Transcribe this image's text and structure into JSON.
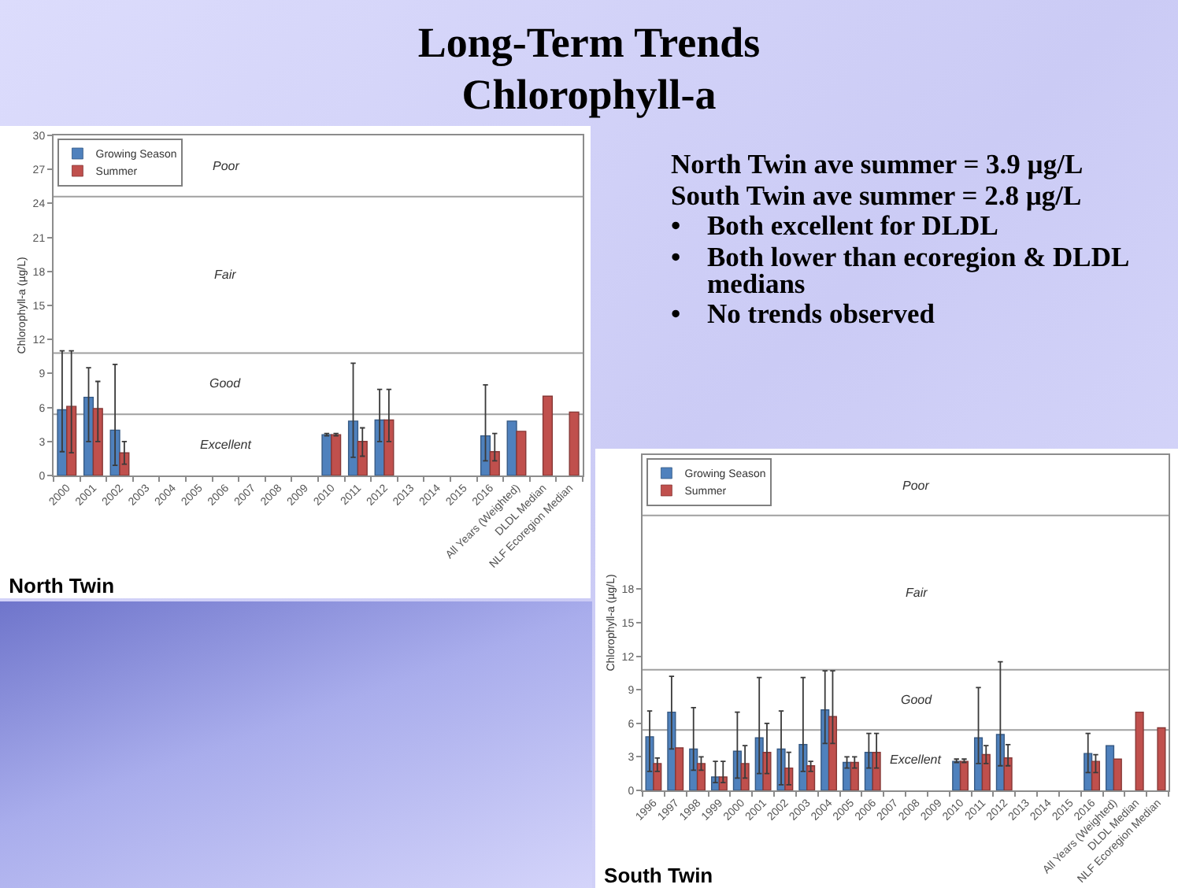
{
  "chart_data": [
    {
      "type": "other",
      "title": "Long-Term Trends\nChlorophyll-a",
      "annotations": [
        "North Twin ave summer = 3.9 µg/L",
        "South Twin ave summer = 2.8 µg/L",
        "•\tBoth excellent for DLDL",
        "•\tBoth lower than ecoregion & DLDL medians",
        "•\tNo trends observed"
      ]
    },
    {
      "type": "bar",
      "title": "North Twin",
      "ylabel": "Chlorophyll-a (µg/L)",
      "categories": [
        "2000",
        "2001",
        "2002",
        "2003",
        "2004",
        "2005",
        "2006",
        "2007",
        "2008",
        "2009",
        "2010",
        "2011",
        "2012",
        "2013",
        "2014",
        "2015",
        "2016",
        "All Years (Weighted)",
        "DLDL Median",
        "NLF Ecoregion Median"
      ],
      "series": [
        {
          "name": "Growing Season",
          "color": "#4f81bd",
          "values": [
            5.8,
            6.9,
            4.0,
            null,
            null,
            null,
            null,
            null,
            null,
            null,
            3.6,
            4.8,
            4.9,
            null,
            null,
            null,
            3.5,
            4.8,
            null,
            null
          ],
          "errors": [
            [
              2.1,
              11
            ],
            [
              3.0,
              9.5
            ],
            [
              0.9,
              9.8
            ],
            null,
            null,
            null,
            null,
            null,
            null,
            null,
            [
              3.5,
              3.7
            ],
            [
              1.6,
              9.9
            ],
            [
              3.0,
              7.6
            ],
            null,
            null,
            null,
            [
              1.3,
              8.0
            ],
            null,
            null,
            null
          ]
        },
        {
          "name": "Summer",
          "color": "#c0504d",
          "values": [
            6.1,
            5.9,
            2.0,
            null,
            null,
            null,
            null,
            null,
            null,
            null,
            3.6,
            3.0,
            4.9,
            null,
            null,
            null,
            2.1,
            3.9,
            7.0,
            5.6
          ],
          "errors": [
            [
              2.0,
              11
            ],
            [
              3.0,
              8.3
            ],
            [
              1.0,
              3.0
            ],
            null,
            null,
            null,
            null,
            null,
            null,
            null,
            [
              3.5,
              3.7
            ],
            [
              1.7,
              4.2
            ],
            [
              3.0,
              7.6
            ],
            null,
            null,
            null,
            [
              1.3,
              3.7
            ],
            null,
            null,
            null
          ]
        }
      ],
      "ylim": [
        0,
        30
      ],
      "yticks": [
        0,
        3,
        6,
        9,
        12,
        15,
        18,
        21,
        24,
        27,
        30
      ],
      "ref_lines": [
        {
          "axis": "y",
          "value": 5.4,
          "color": "#a0a0a0"
        },
        {
          "axis": "y",
          "value": 10.8,
          "color": "#a0a0a0"
        },
        {
          "axis": "y",
          "value": 24.6,
          "color": "#a0a0a0"
        }
      ],
      "annotations": [
        "Poor",
        "Fair",
        "Good",
        "Excellent"
      ],
      "legend": "top left",
      "grid": false
    },
    {
      "type": "bar",
      "title": "South Twin",
      "ylabel": "Chlorophyll-a (µg/L)",
      "categories": [
        "1996",
        "1997",
        "1998",
        "1999",
        "2000",
        "2001",
        "2002",
        "2003",
        "2004",
        "2005",
        "2006",
        "2007",
        "2008",
        "2009",
        "2010",
        "2011",
        "2012",
        "2013",
        "2014",
        "2015",
        "2016",
        "All Years (Weighted)",
        "DLDL Median",
        "NLF Ecoregion Median"
      ],
      "series": [
        {
          "name": "Growing Season",
          "color": "#4f81bd",
          "values": [
            4.8,
            7.0,
            3.7,
            1.2,
            3.5,
            4.7,
            3.7,
            4.1,
            7.2,
            2.5,
            3.4,
            null,
            null,
            null,
            2.6,
            4.7,
            5.0,
            null,
            null,
            null,
            3.3,
            4.0,
            null,
            null
          ],
          "errors": [
            [
              1.7,
              7.1
            ],
            [
              3.7,
              10.2
            ],
            [
              1.8,
              7.4
            ],
            [
              0.7,
              2.6
            ],
            [
              1.1,
              7.0
            ],
            [
              1.5,
              10.1
            ],
            [
              0.5,
              7.1
            ],
            [
              1.7,
              10.1
            ],
            [
              4.2,
              10.7
            ],
            [
              2.0,
              3.0
            ],
            [
              2.0,
              5.1
            ],
            null,
            null,
            null,
            [
              2.5,
              2.8
            ],
            [
              2.4,
              9.2
            ],
            [
              2.2,
              11.5
            ],
            null,
            null,
            null,
            [
              1.6,
              5.1
            ],
            null,
            null,
            null
          ]
        },
        {
          "name": "Summer",
          "color": "#c0504d",
          "values": [
            2.4,
            3.8,
            2.4,
            1.2,
            2.4,
            3.4,
            2.0,
            2.2,
            6.6,
            2.5,
            3.4,
            null,
            null,
            null,
            2.6,
            3.2,
            2.9,
            null,
            null,
            null,
            2.6,
            2.8,
            7.0,
            5.6
          ],
          "errors": [
            [
              1.7,
              2.9
            ],
            null,
            [
              1.8,
              3.0
            ],
            [
              0.7,
              2.6
            ],
            [
              1.1,
              4.0
            ],
            [
              1.5,
              6.0
            ],
            [
              0.5,
              3.4
            ],
            [
              1.7,
              2.6
            ],
            [
              4.2,
              10.7
            ],
            [
              2.0,
              3.0
            ],
            [
              2.0,
              5.1
            ],
            null,
            null,
            null,
            [
              2.5,
              2.8
            ],
            [
              2.4,
              4.0
            ],
            [
              2.2,
              4.1
            ],
            null,
            null,
            null,
            [
              1.6,
              3.2
            ],
            null,
            null,
            null
          ]
        }
      ],
      "ylim": [
        0,
        30
      ],
      "yticks": [
        0,
        3,
        6,
        9,
        12,
        15,
        18
      ],
      "ref_lines": [
        {
          "axis": "y",
          "value": 5.4,
          "color": "#a0a0a0"
        },
        {
          "axis": "y",
          "value": 10.8,
          "color": "#a0a0a0"
        },
        {
          "axis": "y",
          "value": 24.6,
          "color": "#a0a0a0"
        }
      ],
      "annotations": [
        "Poor",
        "Fair",
        "Good",
        "Excellent"
      ],
      "legend": "top left",
      "grid": false
    }
  ]
}
